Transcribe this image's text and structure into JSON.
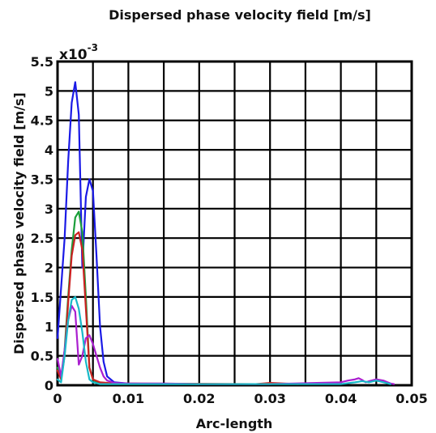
{
  "chart_data": {
    "type": "line",
    "title": "Dispersed phase velocity field [m/s]",
    "xlabel": "Arc-length",
    "ylabel": "Dispersed phase velocity field [m/s]",
    "y_multiplier": {
      "base": "x10",
      "exponent": "-3"
    },
    "xlim": [
      0,
      0.05
    ],
    "ylim": [
      0,
      5.5
    ],
    "x_ticks": [
      0,
      0.01,
      0.02,
      0.03,
      0.04,
      0.05
    ],
    "x_tick_labels": [
      "0",
      "0.01",
      "0.02",
      "0.03",
      "0.04",
      "0.05"
    ],
    "y_ticks": [
      0,
      0.5,
      1,
      1.5,
      2,
      2.5,
      3,
      3.5,
      4,
      4.5,
      5,
      5.5
    ],
    "y_tick_labels": [
      "0",
      "0.5",
      "1",
      "1.5",
      "2",
      "2.5",
      "3",
      "3.5",
      "4",
      "4.5",
      "5",
      "5.5"
    ],
    "grid": true,
    "grid_x_step": 0.005,
    "grid_y_step": 0.5,
    "series": [
      {
        "color": "#1a1ae6",
        "x": [
          0,
          0.001,
          0.0015,
          0.002,
          0.0025,
          0.003,
          0.0035,
          0.004,
          0.0045,
          0.005,
          0.0055,
          0.006,
          0.0065,
          0.007,
          0.008,
          0.01,
          0.015,
          0.02
        ],
        "y": [
          0.8,
          2.5,
          3.8,
          4.8,
          5.15,
          4.6,
          2.0,
          3.2,
          3.5,
          3.3,
          2.2,
          1.0,
          0.4,
          0.15,
          0.05,
          0.03,
          0.02,
          0.02
        ]
      },
      {
        "color": "#1a9e3a",
        "x": [
          0,
          0.0005,
          0.001,
          0.0015,
          0.002,
          0.0025,
          0.003,
          0.0035,
          0.004,
          0.0045,
          0.005,
          0.0055,
          0.006,
          0.008,
          0.012,
          0.02
        ],
        "y": [
          0.3,
          0.1,
          0.6,
          1.5,
          2.3,
          2.85,
          2.95,
          2.6,
          1.5,
          0.3,
          0.1,
          0.05,
          0.02,
          0.02,
          0.02,
          0.02
        ]
      },
      {
        "color": "#cc2222",
        "x": [
          0,
          0.0005,
          0.001,
          0.0015,
          0.002,
          0.0025,
          0.003,
          0.0035,
          0.004,
          0.0045,
          0.005,
          0.006,
          0.008,
          0.01,
          0.028,
          0.03,
          0.032,
          0.034
        ],
        "y": [
          0.25,
          0.1,
          0.5,
          1.4,
          2.2,
          2.55,
          2.6,
          2.3,
          1.3,
          0.3,
          0.1,
          0.05,
          0.03,
          0.03,
          0.02,
          0.04,
          0.03,
          0.02
        ]
      },
      {
        "color": "#aa1fcf",
        "x": [
          0,
          0.0005,
          0.001,
          0.0015,
          0.002,
          0.0025,
          0.003,
          0.0035,
          0.004,
          0.0045,
          0.005,
          0.0055,
          0.006,
          0.0065,
          0.007,
          0.008,
          0.01,
          0.015,
          0.02,
          0.03,
          0.04,
          0.041,
          0.042,
          0.0425,
          0.043,
          0.0435,
          0.044,
          0.045,
          0.046,
          0.047,
          0.0475
        ],
        "y": [
          0.45,
          0.15,
          0.6,
          1.1,
          1.35,
          1.25,
          0.35,
          0.5,
          0.8,
          0.85,
          0.7,
          0.5,
          0.3,
          0.15,
          0.08,
          0.04,
          0.03,
          0.03,
          0.02,
          0.02,
          0.05,
          0.08,
          0.1,
          0.12,
          0.09,
          0.05,
          0.07,
          0.1,
          0.08,
          0.03,
          0.02
        ]
      },
      {
        "color": "#18b9c8",
        "x": [
          0,
          0.0005,
          0.001,
          0.0015,
          0.002,
          0.0025,
          0.003,
          0.0035,
          0.004,
          0.0045,
          0.005,
          0.006,
          0.01,
          0.04,
          0.042,
          0.043,
          0.044,
          0.045,
          0.046,
          0.047
        ],
        "y": [
          0.1,
          0.05,
          0.5,
          1.1,
          1.45,
          1.5,
          1.3,
          0.9,
          0.4,
          0.1,
          0.05,
          0.02,
          0.02,
          0.02,
          0.05,
          0.07,
          0.05,
          0.08,
          0.05,
          0.02
        ]
      }
    ]
  }
}
